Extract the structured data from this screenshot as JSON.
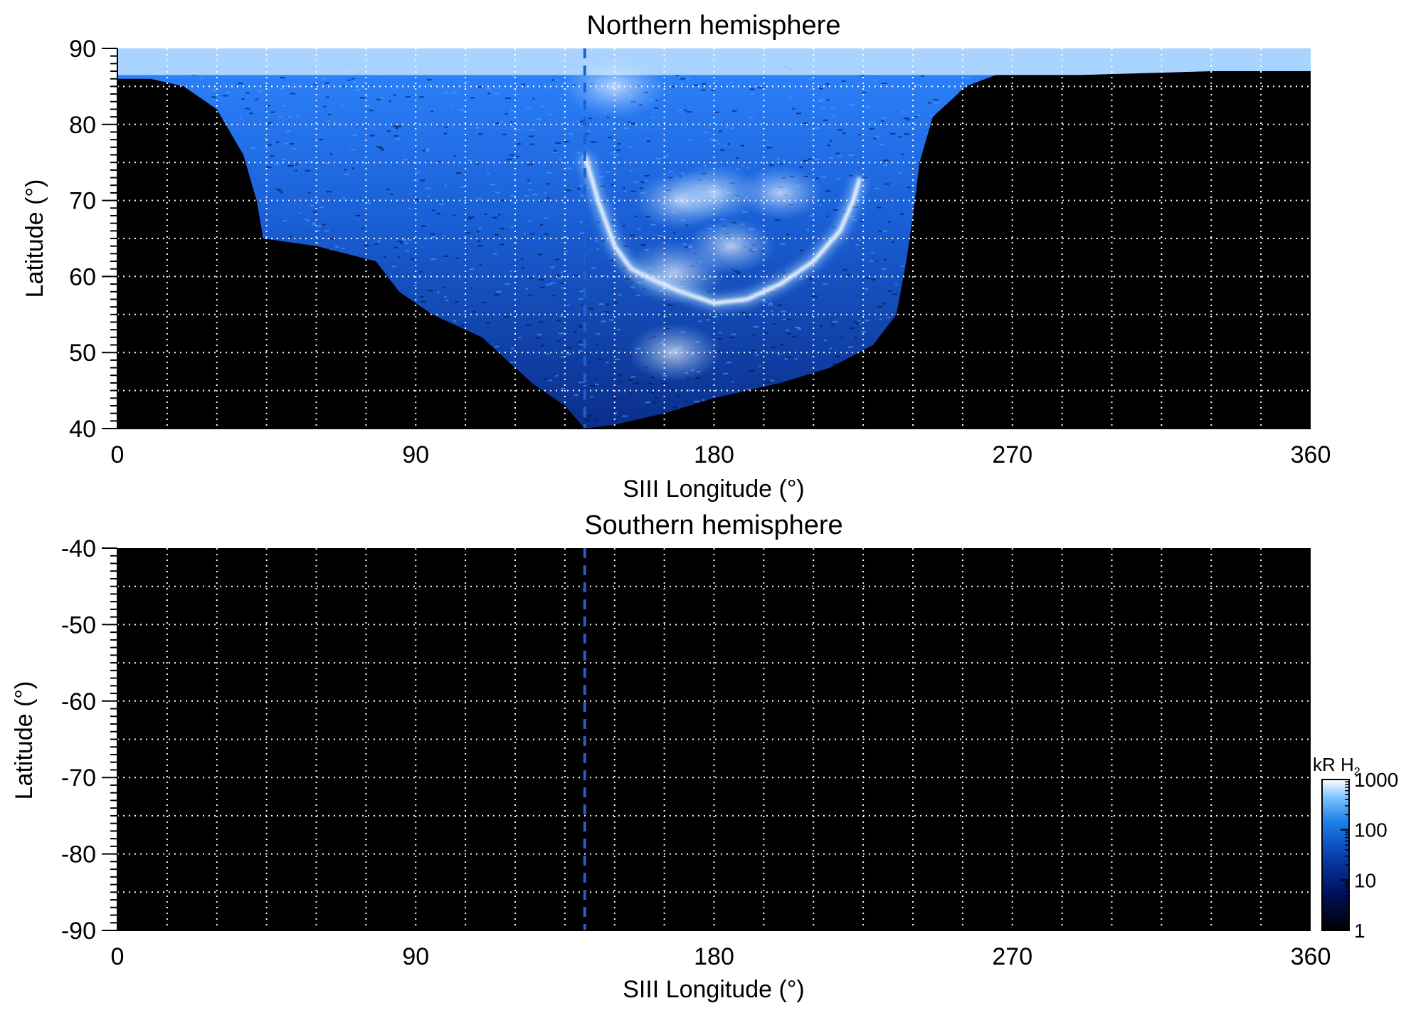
{
  "chart_data": [
    {
      "type": "heatmap",
      "title": "Northern hemisphere",
      "xlabel": "SIII Longitude (°)",
      "ylabel": "Latitude (°)",
      "xlim": [
        0,
        360
      ],
      "ylim": [
        40,
        90
      ],
      "x_ticks": [
        "0",
        "90",
        "180",
        "270",
        "360"
      ],
      "x_tick_values": [
        0,
        90,
        180,
        270,
        360
      ],
      "y_ticks": [
        "40",
        "50",
        "60",
        "70",
        "80",
        "90"
      ],
      "y_tick_values": [
        40,
        50,
        60,
        70,
        80,
        90
      ],
      "grid": true,
      "grid_style": "dotted white",
      "grid_x_step": 15,
      "grid_y_step": 5,
      "reference_line": {
        "x": 141,
        "style": "dashed",
        "color": "#1f5fd0"
      },
      "coverage_outline": [
        [
          0,
          90
        ],
        [
          0,
          86
        ],
        [
          10,
          86
        ],
        [
          20,
          85
        ],
        [
          30,
          82
        ],
        [
          38,
          76
        ],
        [
          42,
          70
        ],
        [
          44,
          65
        ],
        [
          60,
          64
        ],
        [
          78,
          62
        ],
        [
          85,
          58
        ],
        [
          95,
          55
        ],
        [
          110,
          52
        ],
        [
          125,
          46
        ],
        [
          135,
          43
        ],
        [
          141,
          40
        ],
        [
          150,
          40.5
        ],
        [
          165,
          42
        ],
        [
          180,
          44
        ],
        [
          200,
          46
        ],
        [
          215,
          48
        ],
        [
          228,
          51
        ],
        [
          235,
          55
        ],
        [
          238,
          62
        ],
        [
          240,
          68
        ],
        [
          242,
          75
        ],
        [
          246,
          81
        ],
        [
          256,
          85
        ],
        [
          265,
          86.5
        ],
        [
          290,
          86.5
        ],
        [
          330,
          87
        ],
        [
          360,
          87
        ],
        [
          360,
          90
        ]
      ],
      "main_oval": [
        [
          141,
          76
        ],
        [
          145,
          70
        ],
        [
          150,
          64
        ],
        [
          155,
          61
        ],
        [
          162,
          59.5
        ],
        [
          170,
          58
        ],
        [
          180,
          56.5
        ],
        [
          190,
          57
        ],
        [
          200,
          59
        ],
        [
          210,
          62
        ],
        [
          218,
          66
        ],
        [
          222,
          70
        ],
        [
          224,
          73
        ]
      ],
      "emission_features": [
        {
          "lon": 168,
          "lat": 60.5,
          "level": 800
        },
        {
          "lon": 180,
          "lat": 71,
          "level": 300
        },
        {
          "lon": 170,
          "lat": 70,
          "level": 350
        },
        {
          "lon": 200,
          "lat": 71,
          "level": 200
        },
        {
          "lon": 185,
          "lat": 64,
          "level": 250
        },
        {
          "lon": 168,
          "lat": 50,
          "level": 400
        },
        {
          "lon": 150,
          "lat": 85,
          "level": 900
        }
      ]
    },
    {
      "type": "heatmap",
      "title": "Southern hemisphere",
      "xlabel": "SIII Longitude (°)",
      "ylabel": "Latitude (°)",
      "xlim": [
        0,
        360
      ],
      "ylim": [
        -90,
        -40
      ],
      "x_ticks": [
        "0",
        "90",
        "180",
        "270",
        "360"
      ],
      "x_tick_values": [
        0,
        90,
        180,
        270,
        360
      ],
      "y_ticks": [
        "-40",
        "-50",
        "-60",
        "-70",
        "-80",
        "-90"
      ],
      "y_tick_values": [
        -40,
        -50,
        -60,
        -70,
        -80,
        -90
      ],
      "grid": true,
      "grid_style": "dotted white",
      "grid_x_step": 15,
      "grid_y_step": 5,
      "reference_line": {
        "x": 141,
        "style": "dashed",
        "color": "#1f5fd0"
      },
      "coverage_outline": []
    }
  ],
  "colorbar": {
    "title": "kR H",
    "title_subscript": "2",
    "scale": "log",
    "range": [
      1,
      1000
    ],
    "tick_labels": [
      "1",
      "10",
      "100",
      "1000"
    ],
    "tick_values": [
      1,
      10,
      100,
      1000
    ],
    "colors": [
      "#000000",
      "#00115e",
      "#0a3fb0",
      "#1c7fe8",
      "#7cc2ff",
      "#ffffff"
    ]
  }
}
